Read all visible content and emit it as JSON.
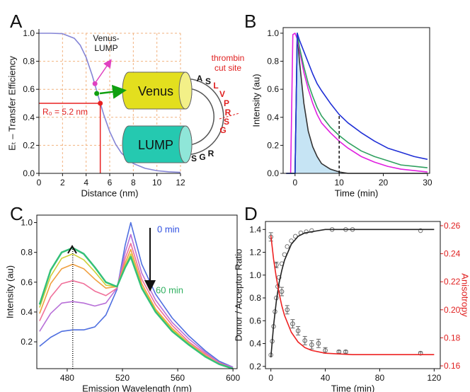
{
  "chart_data": [
    {
      "type": "line",
      "panel_label": "A",
      "xlabel": "Distance (nm)",
      "ylabel": "Eₜ – Transfer Efficiency",
      "x": [
        0,
        1,
        2,
        3,
        3.5,
        4,
        4.5,
        5,
        5.5,
        6,
        6.5,
        7,
        8,
        9,
        10,
        11,
        12
      ],
      "series": [
        {
          "color": "#8585d6",
          "values": [
            1.0,
            1.0,
            0.997,
            0.964,
            0.915,
            0.828,
            0.704,
            0.559,
            0.417,
            0.298,
            0.208,
            0.144,
            0.07,
            0.036,
            0.019,
            0.011,
            0.007
          ]
        }
      ],
      "xlim": [
        0,
        12
      ],
      "ylim": [
        0,
        1
      ],
      "xticks": [
        0,
        2,
        4,
        6,
        8,
        10,
        12
      ],
      "yticks": [
        {
          "value": 0,
          "label": "0.0"
        },
        0.2,
        0.4,
        0.6,
        0.8,
        {
          "value": 1,
          "label": "1.0"
        }
      ],
      "grid": true,
      "grid_color": "#f2b27e",
      "points": [
        {
          "x": 4.75,
          "y": 0.64,
          "color": "#e040c0"
        },
        {
          "x": 4.9,
          "y": 0.57,
          "color": "#10a010"
        },
        {
          "x": 5.2,
          "y": 0.5,
          "color": "#e82020",
          "guides": true
        }
      ],
      "r0_label": "R₀ = 5.2 nm",
      "construct_label": [
        "Venus-",
        "LUMP"
      ],
      "cut_site_label": [
        "thrombin",
        "cut site"
      ],
      "domains": [
        "Venus",
        "LUMP"
      ],
      "top_residues": [
        "A",
        "S"
      ],
      "linker_residues": [
        "L",
        "V",
        "P",
        "R",
        "S",
        "G"
      ],
      "bottom_residues": [
        "S",
        "G",
        "R"
      ]
    },
    {
      "type": "line",
      "panel_label": "B",
      "xlabel": "Time (min)",
      "ylabel": "Intensity (au)",
      "x": [
        -2,
        -1,
        -0.5,
        0,
        0.5,
        1,
        2,
        3,
        4,
        5,
        6,
        8,
        10,
        12,
        15,
        18,
        21,
        24,
        27,
        30
      ],
      "series": [
        {
          "color": "#333333",
          "fill": "#c6e4f4",
          "values": [
            0,
            0,
            0,
            0,
            1.0,
            0.8,
            0.5,
            0.3,
            0.19,
            0.12,
            0.07,
            0.03,
            0.01,
            0,
            0,
            0,
            0,
            0,
            0,
            0
          ]
        },
        {
          "color": "#e020e0",
          "values": [
            0,
            0,
            0.99,
            1.0,
            0.96,
            0.88,
            0.72,
            0.6,
            0.5,
            0.42,
            0.36,
            0.29,
            0.23,
            0.18,
            0.12,
            0.08,
            0.05,
            0.03,
            0.02,
            0.01
          ]
        },
        {
          "color": "#30a060",
          "values": [
            0,
            0,
            0,
            0,
            1.0,
            0.9,
            0.76,
            0.64,
            0.55,
            0.47,
            0.41,
            0.33,
            0.27,
            0.22,
            0.16,
            0.12,
            0.09,
            0.06,
            0.05,
            0.04
          ]
        },
        {
          "color": "#1f2fd6",
          "values": [
            0,
            0,
            0,
            0,
            1.0,
            0.95,
            0.87,
            0.79,
            0.71,
            0.64,
            0.59,
            0.5,
            0.42,
            0.36,
            0.29,
            0.23,
            0.18,
            0.15,
            0.12,
            0.1
          ]
        }
      ],
      "xlim": [
        -2.7,
        30.5
      ],
      "ylim": [
        0,
        1.04
      ],
      "xticks": [
        0,
        10,
        20,
        30
      ],
      "yticks": [
        {
          "value": 0,
          "label": "0.0"
        },
        0.2,
        0.4,
        0.6,
        0.8,
        {
          "value": 1,
          "label": "1.0"
        }
      ],
      "marker_line": {
        "x": 10,
        "y": 0.42,
        "dash": "dashed"
      }
    },
    {
      "type": "line",
      "panel_label": "C",
      "xlabel": "Emission Wavelength (nm)",
      "ylabel": "Intensity (au)",
      "x": [
        460,
        468,
        476,
        484,
        492,
        500,
        508,
        516,
        522,
        526,
        534,
        544,
        556,
        568,
        580,
        590,
        600
      ],
      "series": [
        {
          "color": "#4f6fe0",
          "values": [
            0.17,
            0.23,
            0.27,
            0.28,
            0.28,
            0.3,
            0.38,
            0.55,
            0.85,
            1.0,
            0.72,
            0.52,
            0.36,
            0.24,
            0.14,
            0.07,
            0.03
          ]
        },
        {
          "color": "#b870d8",
          "values": [
            0.27,
            0.39,
            0.46,
            0.47,
            0.46,
            0.44,
            0.46,
            0.56,
            0.8,
            0.92,
            0.66,
            0.48,
            0.33,
            0.22,
            0.13,
            0.06,
            0.03
          ]
        },
        {
          "color": "#f0709a",
          "values": [
            0.34,
            0.5,
            0.59,
            0.61,
            0.59,
            0.54,
            0.51,
            0.56,
            0.76,
            0.86,
            0.62,
            0.45,
            0.31,
            0.2,
            0.12,
            0.06,
            0.02
          ]
        },
        {
          "color": "#f0a040",
          "values": [
            0.39,
            0.59,
            0.69,
            0.72,
            0.69,
            0.62,
            0.56,
            0.57,
            0.73,
            0.82,
            0.59,
            0.42,
            0.29,
            0.19,
            0.11,
            0.05,
            0.02
          ]
        },
        {
          "color": "#cfcf3a",
          "values": [
            0.43,
            0.64,
            0.76,
            0.79,
            0.75,
            0.67,
            0.58,
            0.57,
            0.71,
            0.79,
            0.57,
            0.41,
            0.28,
            0.19,
            0.1,
            0.05,
            0.02
          ]
        },
        {
          "color": "#34c078",
          "width": 2.5,
          "values": [
            0.45,
            0.68,
            0.8,
            0.83,
            0.79,
            0.7,
            0.6,
            0.57,
            0.7,
            0.77,
            0.56,
            0.4,
            0.27,
            0.18,
            0.1,
            0.05,
            0.02
          ]
        }
      ],
      "xlim": [
        458,
        603
      ],
      "ylim": [
        0.02,
        1.05
      ],
      "xticks": [
        480,
        520,
        560,
        600
      ],
      "yticks": [
        0.2,
        0.4,
        0.6,
        0.8,
        {
          "value": 1,
          "label": "1.0"
        }
      ],
      "marker_line": {
        "x": 484,
        "y": 0.83,
        "dash": "dotted"
      },
      "start_label": "0 min",
      "end_label": "60 min"
    },
    {
      "type": "line",
      "panel_label": "D",
      "xlabel": "Time (min)",
      "ylabel": "Donor / Acceptor Ratio",
      "y2label": "Anisotropy",
      "y2color": "#e02020",
      "series": [
        {
          "style": "points",
          "color": "#777777",
          "x": [
            0,
            1,
            2,
            3,
            4,
            5,
            6,
            8,
            10,
            12,
            15,
            18,
            22,
            26,
            30,
            45,
            55,
            60,
            110
          ],
          "values": [
            0.3,
            0.42,
            0.55,
            0.68,
            0.8,
            0.9,
            0.98,
            1.1,
            1.18,
            1.25,
            1.3,
            1.34,
            1.37,
            1.38,
            1.39,
            1.4,
            1.4,
            1.4,
            1.39
          ]
        },
        {
          "color": "#222222",
          "x": [
            0,
            2,
            4,
            6,
            8,
            10,
            15,
            20,
            25,
            30,
            40,
            60,
            80,
            100,
            120
          ],
          "values": [
            0.28,
            0.56,
            0.77,
            0.93,
            1.04,
            1.13,
            1.27,
            1.34,
            1.37,
            1.38,
            1.4,
            1.4,
            1.4,
            1.4,
            1.4
          ]
        },
        {
          "style": "points",
          "axis": "y2",
          "color": "#666666",
          "x": [
            0,
            4,
            8,
            12,
            16,
            20,
            25,
            30,
            35,
            40,
            50,
            55,
            110
          ],
          "values": [
            0.252,
            0.232,
            0.213,
            0.2,
            0.19,
            0.185,
            0.178,
            0.175,
            0.176,
            0.171,
            0.17,
            0.17,
            0.169
          ],
          "errors": [
            0.003,
            0.002,
            0.003,
            0.003,
            0.003,
            0.003,
            0.003,
            0.003,
            0.003,
            0.002,
            0.001,
            0.001,
            0.001
          ]
        },
        {
          "axis": "y2",
          "color": "#ee2222",
          "x": [
            0,
            2,
            4,
            6,
            8,
            10,
            15,
            20,
            25,
            30,
            40,
            60,
            80,
            100,
            120
          ],
          "values": [
            0.253,
            0.236,
            0.223,
            0.212,
            0.203,
            0.196,
            0.184,
            0.177,
            0.173,
            0.171,
            0.169,
            0.168,
            0.168,
            0.168,
            0.168
          ]
        }
      ],
      "xlim": [
        -4,
        124.5
      ],
      "ylim": [
        0.18,
        1.47
      ],
      "y2lim": [
        0.158,
        0.263
      ],
      "xticks": [
        0,
        40,
        80,
        120
      ],
      "yticks": [
        0.2,
        0.4,
        0.6,
        0.8,
        {
          "value": 1,
          "label": "1.0"
        },
        1.2,
        1.4
      ],
      "y2ticks": [
        0.16,
        0.18,
        {
          "value": 0.2,
          "label": "0.20"
        },
        0.22,
        0.24,
        0.26
      ]
    }
  ]
}
